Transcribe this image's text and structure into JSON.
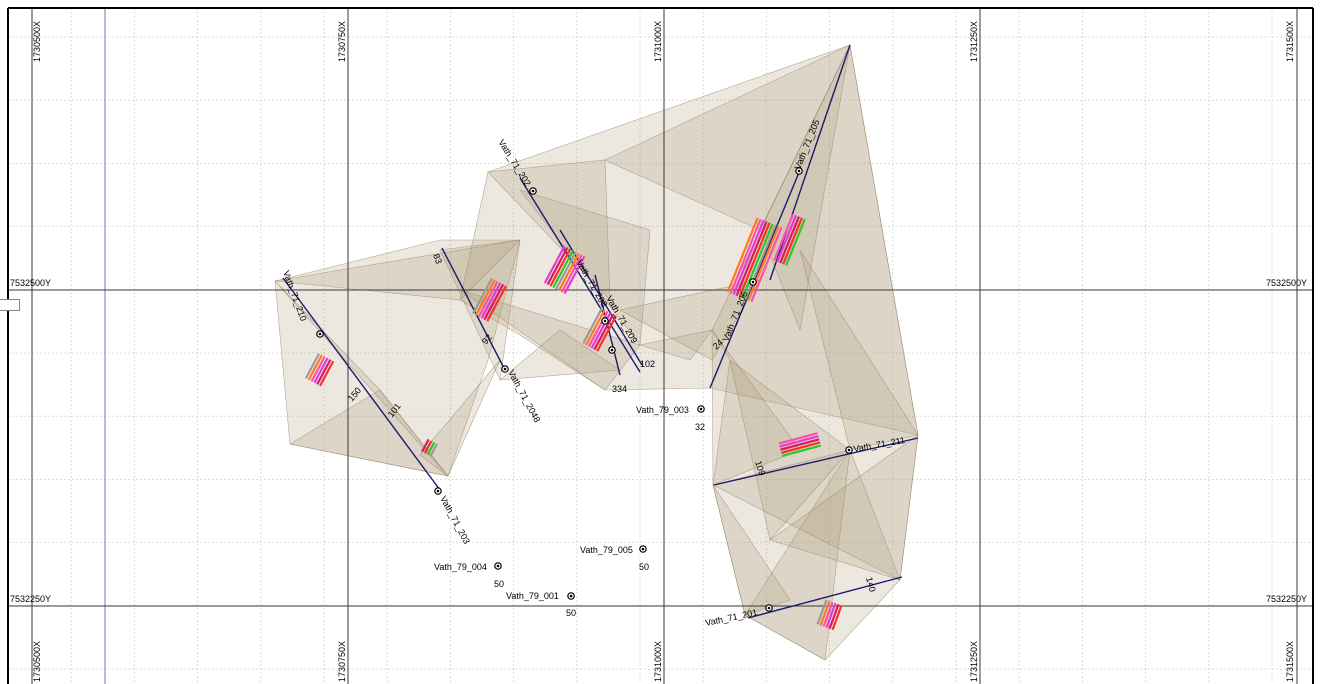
{
  "map": {
    "x_axis_labels": [
      "1730500X",
      "1730750X",
      "1731000X",
      "1731250X",
      "1731500X"
    ],
    "y_axis_labels": [
      "7532500Y",
      "7532250Y"
    ],
    "colors": {
      "grid_major": "#3a3a3a",
      "grid_minor": "#d4d4d4",
      "mesh_fill": "#a89472",
      "mesh_stroke": "#9a8868",
      "trace": "#1a1a6e",
      "boundary": "#6b6bd6"
    },
    "holes": [
      {
        "label": "Vath_71_201",
        "depth": ""
      },
      {
        "label": "Vath_71_202",
        "depth": ""
      },
      {
        "label": "Vath_71_203",
        "depth": "101"
      },
      {
        "label": "Vath_71_2048",
        "depth": "83"
      },
      {
        "label": "Vath_71_205",
        "depth": ""
      },
      {
        "label": "Vath_71_206",
        "depth": "24"
      },
      {
        "label": "Vath_71_208",
        "depth": "102"
      },
      {
        "label": "Vath_71_209",
        "depth": "334"
      },
      {
        "label": "Vath_71_210",
        "depth": "140"
      },
      {
        "label": "Vath_71_211",
        "depth": "109"
      },
      {
        "label": "Vath_79_001",
        "depth": "50"
      },
      {
        "label": "Vath_79_003",
        "depth": "32"
      },
      {
        "label": "Vath_79_004",
        "depth": "50"
      },
      {
        "label": "Vath_79_005",
        "depth": "50"
      }
    ],
    "misc_labels": [
      "150",
      "92",
      "Vath_71_"
    ]
  }
}
